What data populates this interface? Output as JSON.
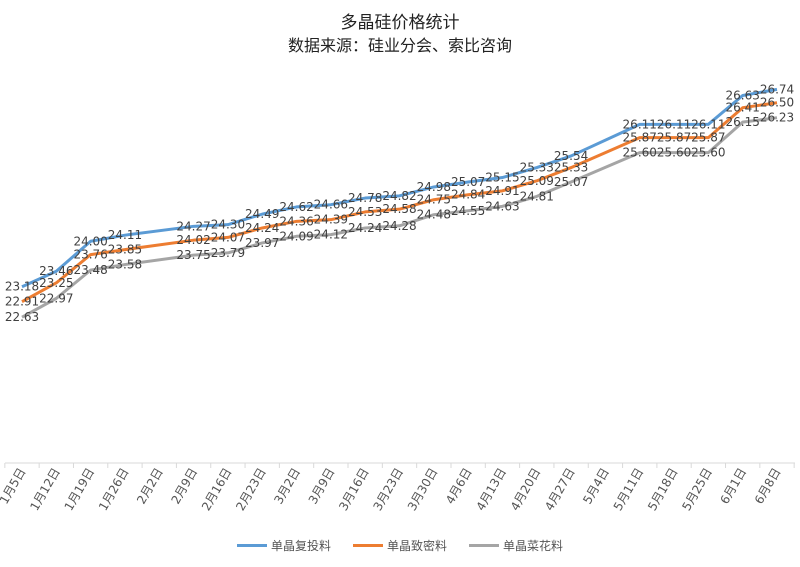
{
  "chart_data": {
    "type": "line",
    "title": "多晶硅价格统计",
    "subtitle": "数据来源：硅业分会、索比咨询",
    "categories": [
      "1月5日",
      "1月12日",
      "1月19日",
      "1月26日",
      "2月2日",
      "2月9日",
      "2月16日",
      "2月23日",
      "3月2日",
      "3月9日",
      "3月16日",
      "3月23日",
      "3月30日",
      "4月6日",
      "4月13日",
      "4月20日",
      "4月27日",
      "5月4日",
      "5月11日",
      "5月18日",
      "5月25日",
      "6月1日",
      "6月8日"
    ],
    "ylim": [
      20,
      27
    ],
    "y_axis_visible": false,
    "grid": false,
    "legend_position": "bottom",
    "series": [
      {
        "name": "单晶复投料",
        "color": "#5b9bd5",
        "values": [
          23.18,
          23.46,
          24.0,
          24.11,
          null,
          24.27,
          24.3,
          24.49,
          24.62,
          24.66,
          24.78,
          24.82,
          24.98,
          25.07,
          25.15,
          25.33,
          25.54,
          null,
          26.11,
          26.11,
          26.11,
          26.63,
          26.74
        ]
      },
      {
        "name": "单晶致密料",
        "color": "#ed7d31",
        "values": [
          22.91,
          23.25,
          23.76,
          23.85,
          null,
          24.02,
          24.07,
          24.24,
          24.36,
          24.39,
          24.53,
          24.58,
          24.75,
          24.84,
          24.91,
          25.09,
          25.33,
          null,
          25.87,
          25.87,
          25.87,
          26.41,
          26.5
        ]
      },
      {
        "name": "单晶菜花料",
        "color": "#a5a5a5",
        "values": [
          22.63,
          22.97,
          23.48,
          23.58,
          null,
          23.75,
          23.79,
          23.97,
          24.09,
          24.12,
          24.24,
          24.28,
          24.48,
          24.55,
          24.63,
          24.81,
          25.07,
          null,
          25.6,
          25.6,
          25.6,
          26.15,
          26.23
        ]
      }
    ]
  }
}
